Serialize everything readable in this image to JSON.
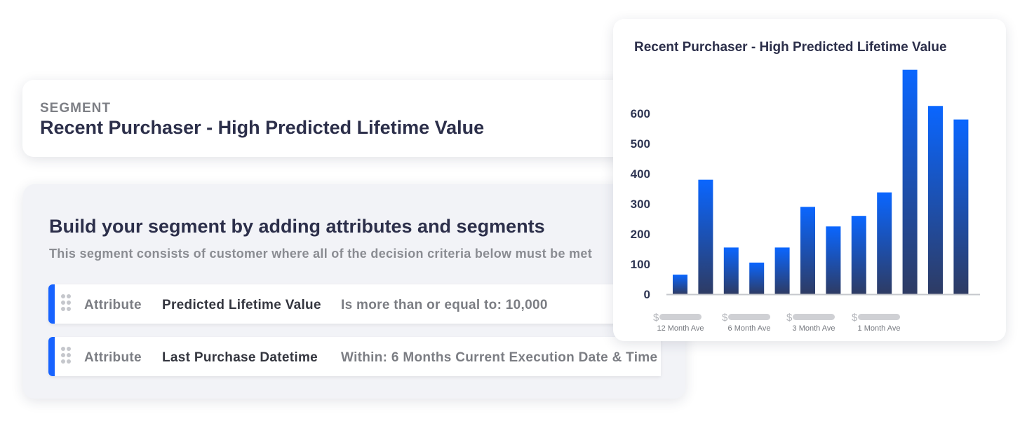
{
  "segment": {
    "label": "SEGMENT",
    "title": "Recent Purchaser - High Predicted Lifetime Value"
  },
  "builder": {
    "heading": "Build your segment by adding attributes and segments",
    "subheading": "This segment consists of customer where all of the decision criteria below must be met",
    "rules": [
      {
        "type": "Attribute",
        "attribute": "Predicted Lifetime Value",
        "condition": "Is more than or equal to: 10,000"
      },
      {
        "type": "Attribute",
        "attribute": "Last Purchase Datetime",
        "condition": "Within: 6 Months Current Execution Date & Time"
      }
    ]
  },
  "colors": {
    "accent": "#1763ff",
    "bar_top": "#0a66ff",
    "bar_bottom": "#2e3b63",
    "text_dark": "#2c2f4a"
  },
  "chart_data": {
    "type": "bar",
    "title": "Recent Purchaser - High Predicted Lifetime Value",
    "xlabel": "",
    "ylabel": "",
    "ylim": [
      0,
      700
    ],
    "yticks": [
      0,
      100,
      200,
      300,
      400,
      500,
      600
    ],
    "grid": false,
    "values": [
      65,
      380,
      155,
      105,
      155,
      290,
      225,
      260,
      338,
      745,
      625,
      580
    ],
    "group_labels": [
      "12 Month Ave",
      "6 Month Ave",
      "3 Month Ave",
      "1 Month Ave"
    ],
    "currency_symbol": "$"
  }
}
